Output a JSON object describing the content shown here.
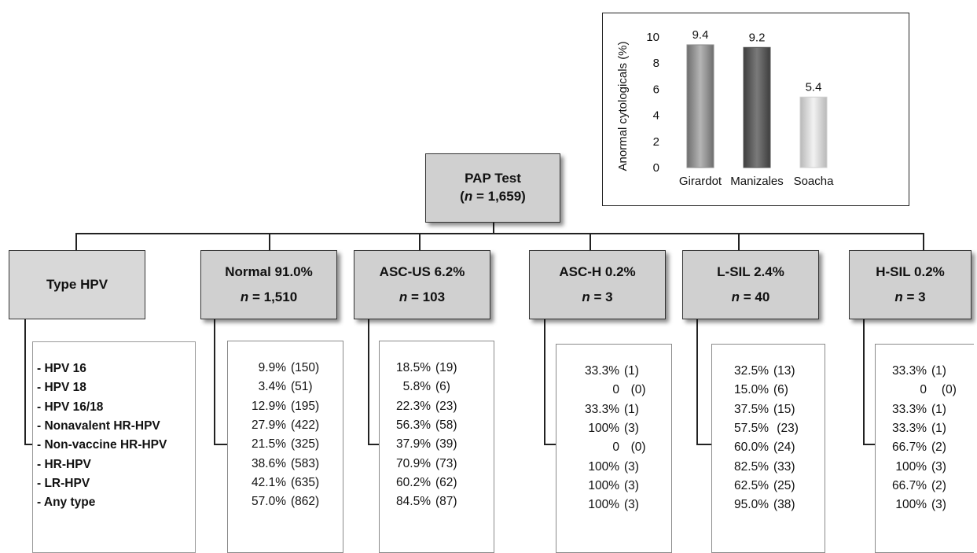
{
  "inset_chart": {
    "chart_data": {
      "type": "bar",
      "categories": [
        "Girardot",
        "Manizales",
        "Soacha"
      ],
      "values": [
        9.4,
        9.2,
        5.4
      ],
      "value_labels": [
        "9.4",
        "9.2",
        "5.4"
      ],
      "ylabel": "Anormal cytologicals (%)",
      "ylim": [
        0,
        10
      ],
      "yticks": [
        "0",
        "2",
        "4",
        "6",
        "8",
        "10"
      ],
      "bar_colors": [
        "#8c8c8c",
        "#555555",
        "#cfcfcf"
      ],
      "grid": false
    }
  },
  "root": {
    "title": "PAP Test",
    "n_prefix": "(",
    "n_italic": "n",
    "n_suffix": " = 1,659)"
  },
  "type_box": {
    "label": "Type HPV"
  },
  "hpv_types": [
    "- HPV 16",
    "- HPV 18",
    "- HPV 16/18",
    "- Nonavalent HR-HPV",
    "- Non-vaccine HR-HPV",
    "- HR-HPV",
    "- LR-HPV",
    "- Any type"
  ],
  "categories": [
    {
      "title": "Normal 91.0%",
      "n_italic": "n",
      "n_value": " = 1,510",
      "rows": [
        [
          "9.9%",
          "(150)"
        ],
        [
          "3.4%",
          "(51)"
        ],
        [
          "12.9%",
          "(195)"
        ],
        [
          "27.9%",
          "(422)"
        ],
        [
          "21.5%",
          "(325)"
        ],
        [
          "38.6%",
          "(583)"
        ],
        [
          "42.1%",
          "(635)"
        ],
        [
          "57.0%",
          "(862)"
        ]
      ]
    },
    {
      "title": "ASC-US 6.2%",
      "n_italic": "n",
      "n_value": " = 103",
      "rows": [
        [
          "18.5%",
          "(19)"
        ],
        [
          "5.8%",
          "(6)"
        ],
        [
          "22.3%",
          "(23)"
        ],
        [
          "56.3%",
          "(58)"
        ],
        [
          "37.9%",
          "(39)"
        ],
        [
          "70.9%",
          "(73)"
        ],
        [
          "60.2%",
          "(62)"
        ],
        [
          "84.5%",
          "(87)"
        ]
      ]
    },
    {
      "title": "ASC-H 0.2%",
      "n_italic": "n",
      "n_value": " = 3",
      "rows": [
        [
          "33.3%",
          "(1)"
        ],
        [
          "0",
          "  (0)"
        ],
        [
          "33.3%",
          "(1)"
        ],
        [
          "100%",
          "(3)"
        ],
        [
          "0",
          "  (0)"
        ],
        [
          "100%",
          "(3)"
        ],
        [
          "100%",
          "(3)"
        ],
        [
          "100%",
          "(3)"
        ]
      ]
    },
    {
      "title": "L-SIL 2.4%",
      "n_italic": "n",
      "n_value": " = 40",
      "rows": [
        [
          "32.5%",
          "(13)"
        ],
        [
          "15.0%",
          "(6)"
        ],
        [
          "37.5%",
          "(15)"
        ],
        [
          "57.5%",
          " (23)"
        ],
        [
          "60.0%",
          "(24)"
        ],
        [
          "82.5%",
          "(33)"
        ],
        [
          "62.5%",
          "(25)"
        ],
        [
          "95.0%",
          "(38)"
        ]
      ]
    },
    {
      "title": "H-SIL 0.2%",
      "n_italic": "n",
      "n_value": " = 3",
      "rows": [
        [
          "33.3%",
          "(1)"
        ],
        [
          "0",
          "   (0)"
        ],
        [
          "33.3%",
          "(1)"
        ],
        [
          "33.3%",
          "(1)"
        ],
        [
          "66.7%",
          "(2)"
        ],
        [
          "100%",
          "(3)"
        ],
        [
          "66.7%",
          "(2)"
        ],
        [
          "100%",
          "(3)"
        ]
      ]
    }
  ]
}
